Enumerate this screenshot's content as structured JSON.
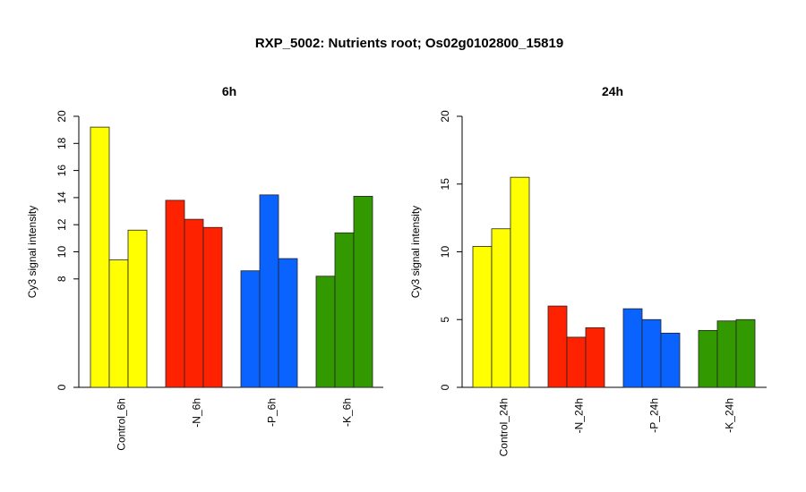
{
  "title": "RXP_5002: Nutrients root; Os02g0102800_15819",
  "chart_data": [
    {
      "type": "bar",
      "title": "6h",
      "ylabel": "Cy3 signal intensity",
      "ylim": [
        0,
        20
      ],
      "yticks": [
        0,
        8,
        10,
        12,
        14,
        16,
        18,
        20
      ],
      "groups": [
        {
          "label": "Control_6h",
          "color": "#ffff00",
          "values": [
            19.2,
            9.4,
            11.6
          ]
        },
        {
          "label": "-N_6h",
          "color": "#ff2200",
          "values": [
            13.8,
            12.4,
            11.8
          ]
        },
        {
          "label": "-P_6h",
          "color": "#0a63ff",
          "values": [
            8.6,
            14.2,
            9.5
          ]
        },
        {
          "label": "-K_6h",
          "color": "#339900",
          "values": [
            8.2,
            11.4,
            14.1
          ]
        }
      ]
    },
    {
      "type": "bar",
      "title": "24h",
      "ylabel": "Cy3 signal intensity",
      "ylim": [
        0,
        20
      ],
      "yticks": [
        0,
        5,
        10,
        15,
        20
      ],
      "groups": [
        {
          "label": "Control_24h",
          "color": "#ffff00",
          "values": [
            10.4,
            11.7,
            15.5
          ]
        },
        {
          "label": "-N_24h",
          "color": "#ff2200",
          "values": [
            6.0,
            3.7,
            4.4
          ]
        },
        {
          "label": "-P_24h",
          "color": "#0a63ff",
          "values": [
            5.8,
            5.0,
            4.0
          ]
        },
        {
          "label": "-K_24h",
          "color": "#339900",
          "values": [
            4.2,
            4.9,
            5.0
          ]
        }
      ]
    }
  ]
}
